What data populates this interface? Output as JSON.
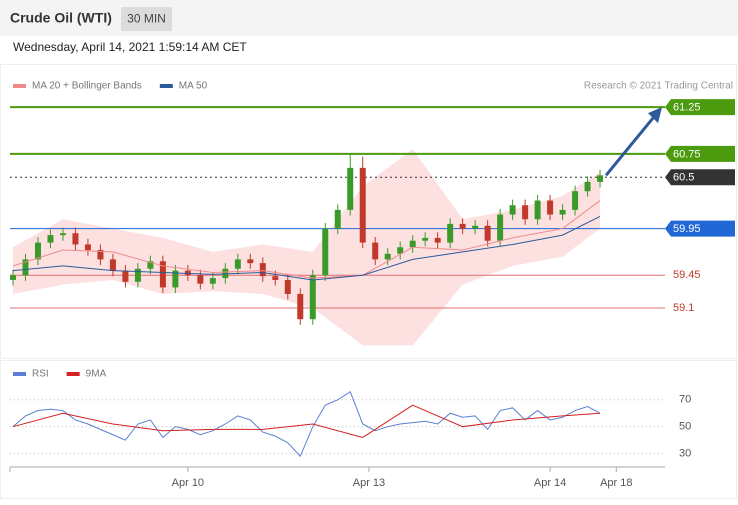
{
  "header": {
    "title": "Crude Oil (WTI)",
    "timeframe": "30 MIN"
  },
  "timestamp": "Wednesday, April 14, 2021 1:59:14 AM CET",
  "credit": "Research © 2021 Trading Central",
  "chart_data": [
    {
      "type": "candlestick",
      "x": [
        0,
        1,
        2,
        3,
        4,
        5,
        6,
        7,
        8,
        9,
        10,
        11,
        12,
        13,
        14,
        15,
        16,
        17,
        18,
        19,
        20,
        21,
        22,
        23,
        24,
        25,
        26,
        27,
        28,
        29,
        30,
        31,
        32,
        33,
        34,
        35,
        36,
        37,
        38,
        39,
        40,
        41,
        42,
        43,
        44,
        45,
        46,
        47
      ],
      "open": [
        59.4,
        59.45,
        59.62,
        59.8,
        59.88,
        59.9,
        59.78,
        59.72,
        59.62,
        59.5,
        59.38,
        59.52,
        59.6,
        59.32,
        59.5,
        59.45,
        59.36,
        59.42,
        59.52,
        59.62,
        59.58,
        59.44,
        59.4,
        59.25,
        58.98,
        59.45,
        59.95,
        60.15,
        60.6,
        59.8,
        59.62,
        59.68,
        59.75,
        59.82,
        59.85,
        59.8,
        60.0,
        59.95,
        59.98,
        59.82,
        60.1,
        60.2,
        60.05,
        60.25,
        60.1,
        60.15,
        60.35,
        60.45
      ],
      "high": [
        59.51,
        59.68,
        59.86,
        59.94,
        59.96,
        59.96,
        59.84,
        59.78,
        59.68,
        59.56,
        59.58,
        59.66,
        59.66,
        59.56,
        59.56,
        59.51,
        59.48,
        59.58,
        59.68,
        59.68,
        59.64,
        59.5,
        59.46,
        59.31,
        59.51,
        60.01,
        60.21,
        60.75,
        60.72,
        59.86,
        59.74,
        59.81,
        59.88,
        59.91,
        59.91,
        60.06,
        60.06,
        60.04,
        60.04,
        60.16,
        60.26,
        60.26,
        60.31,
        60.31,
        60.21,
        60.41,
        60.51,
        60.58
      ],
      "low": [
        59.34,
        59.39,
        59.56,
        59.74,
        59.82,
        59.72,
        59.66,
        59.56,
        59.44,
        59.32,
        59.32,
        59.46,
        59.26,
        59.26,
        59.39,
        59.3,
        59.3,
        59.36,
        59.46,
        59.52,
        59.38,
        59.34,
        59.19,
        58.92,
        58.92,
        59.39,
        59.89,
        60.09,
        59.74,
        59.56,
        59.56,
        59.62,
        59.69,
        59.76,
        59.74,
        59.74,
        59.89,
        59.89,
        59.76,
        59.76,
        60.04,
        59.99,
        59.99,
        60.04,
        60.04,
        60.09,
        60.29,
        60.39
      ],
      "close": [
        59.45,
        59.62,
        59.8,
        59.88,
        59.9,
        59.78,
        59.72,
        59.62,
        59.5,
        59.38,
        59.52,
        59.6,
        59.32,
        59.5,
        59.45,
        59.36,
        59.42,
        59.52,
        59.62,
        59.58,
        59.44,
        59.4,
        59.25,
        58.98,
        59.45,
        59.95,
        60.15,
        60.6,
        59.8,
        59.62,
        59.68,
        59.75,
        59.82,
        59.85,
        59.8,
        60.0,
        59.95,
        59.98,
        59.82,
        60.1,
        60.2,
        60.05,
        60.25,
        60.1,
        60.15,
        60.35,
        60.45,
        60.52
      ],
      "up_color": "#3a9a2a",
      "down_color": "#c0392b",
      "series": [
        {
          "name": "MA 20 + Bollinger Bands",
          "color": "#f08a8a",
          "band_color": "#fde0e0",
          "x": [
            0,
            4,
            8,
            12,
            16,
            20,
            24,
            28,
            32,
            36,
            40,
            44,
            47
          ],
          "values": [
            59.55,
            59.72,
            59.7,
            59.55,
            59.48,
            59.5,
            59.42,
            59.45,
            59.75,
            59.72,
            59.85,
            59.95,
            60.25
          ],
          "upper": [
            59.75,
            60.05,
            59.95,
            59.85,
            59.7,
            59.78,
            59.7,
            60.4,
            60.8,
            60.05,
            60.15,
            60.3,
            60.55
          ],
          "lower": [
            59.25,
            59.35,
            59.4,
            59.25,
            59.28,
            59.25,
            59.1,
            58.7,
            58.7,
            59.35,
            59.55,
            59.65,
            59.95
          ]
        },
        {
          "name": "MA 50",
          "color": "#2c5a9a",
          "x": [
            0,
            4,
            8,
            12,
            16,
            20,
            24,
            28,
            32,
            36,
            40,
            44,
            47
          ],
          "values": [
            59.5,
            59.55,
            59.5,
            59.48,
            59.46,
            59.48,
            59.4,
            59.45,
            59.62,
            59.7,
            59.78,
            59.88,
            60.08
          ]
        }
      ],
      "levels": [
        {
          "value": 61.25,
          "color": "#4c9a0e",
          "style": "box"
        },
        {
          "value": 60.75,
          "color": "#4c9a0e",
          "style": "box"
        },
        {
          "value": 60.5,
          "color": "#333333",
          "style": "current"
        },
        {
          "value": 59.95,
          "color": "#2167d6",
          "style": "box"
        },
        {
          "value": 59.45,
          "color": "#e07070",
          "style": "text"
        },
        {
          "value": 59.1,
          "color": "#e07070",
          "style": "text"
        }
      ],
      "xlim": [
        -0.24,
        52.2
      ],
      "ylim": [
        58.65,
        61.38
      ]
    },
    {
      "type": "line",
      "x": [
        0,
        1,
        2,
        3,
        4,
        5,
        6,
        7,
        8,
        9,
        10,
        11,
        12,
        13,
        14,
        15,
        16,
        17,
        18,
        19,
        20,
        21,
        22,
        23,
        24,
        25,
        26,
        27,
        28,
        29,
        30,
        31,
        32,
        33,
        34,
        35,
        36,
        37,
        38,
        39,
        40,
        41,
        42,
        43,
        44,
        45,
        46,
        47
      ],
      "series": [
        {
          "name": "RSI",
          "color": "#5b7fd4",
          "values": [
            50,
            58,
            62,
            63,
            62,
            55,
            52,
            48,
            44,
            40,
            52,
            55,
            42,
            50,
            48,
            44,
            47,
            52,
            58,
            55,
            46,
            43,
            38,
            28,
            50,
            66,
            70,
            76,
            52,
            47,
            50,
            52,
            53,
            54,
            52,
            60,
            57,
            58,
            48,
            62,
            64,
            55,
            62,
            55,
            57,
            62,
            65,
            60
          ]
        },
        {
          "name": "9MA",
          "color": "#d42020",
          "x": [
            0,
            4,
            8,
            12,
            16,
            20,
            24,
            28,
            32,
            36,
            40,
            44,
            47
          ],
          "values": [
            50,
            60,
            52,
            47,
            48,
            48,
            52,
            42,
            66,
            50,
            55,
            58,
            60
          ]
        }
      ],
      "xlim": [
        -0.24,
        52.2
      ],
      "ylim": [
        21.5,
        81
      ],
      "yticks": [
        30,
        50,
        70
      ],
      "xticks": [
        {
          "value": 14,
          "label": "Apr 10"
        },
        {
          "value": 28.5,
          "label": "Apr 13"
        },
        {
          "value": 43,
          "label": "Apr 14"
        },
        {
          "value": 48.3,
          "label": "Apr 18"
        }
      ],
      "grid": true
    }
  ]
}
